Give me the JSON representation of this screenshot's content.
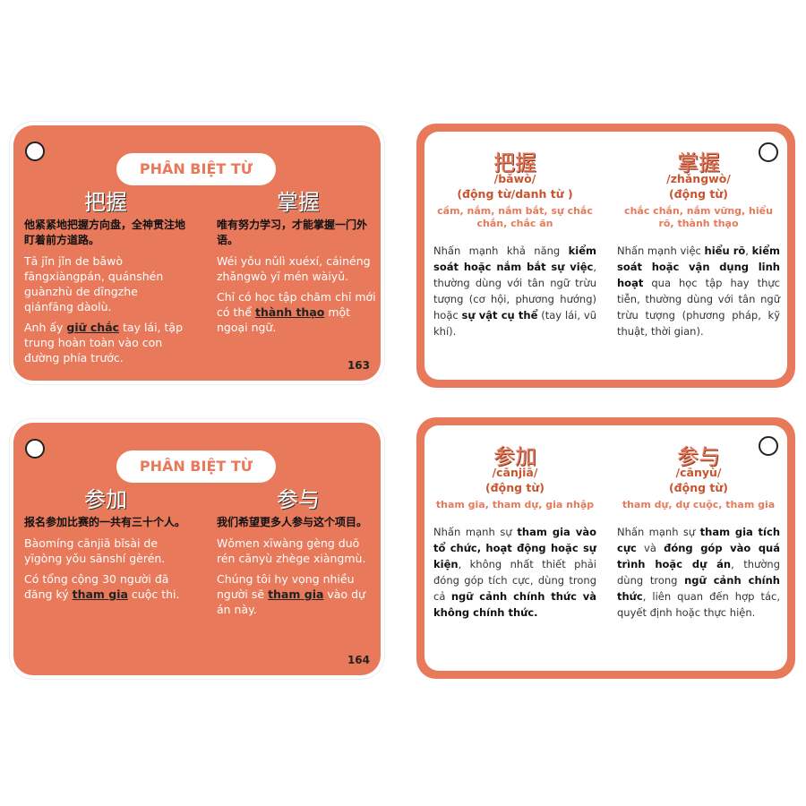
{
  "cards": [
    {
      "front": {
        "badge": "PHÂN BIỆT TỪ",
        "number": "163",
        "words": [
          {
            "hanzi": "把握",
            "example_cn": "他紧紧地把握方向盘，全神贯注地盯着前方道路。",
            "pinyin": "Tā jǐn jǐn de bǎwò fāngxiàngpán, quánshén guànzhù de dīngzhe qiánfāng dàolù.",
            "vi": [
              "Anh ấy ",
              {
                "text": "giữ chắc",
                "underline": true
              },
              " tay lái, tập trung hoàn toàn vào con đường phía trước."
            ]
          },
          {
            "hanzi": "掌握",
            "example_cn": "唯有努力学习，才能掌握一门外语。",
            "pinyin": "Wéi yǒu nǔlì xuéxí, cáinéng zhǎngwò yī mén wàiyǔ.",
            "vi": [
              "Chỉ có học tập chăm chỉ mới có thể ",
              {
                "text": "thành thạo",
                "underline": true
              },
              " một ngoại ngữ."
            ]
          }
        ]
      },
      "back": {
        "words": [
          {
            "hanzi": "把握",
            "pinyin": "/bǎwò/",
            "pos": "(động từ/danh từ )",
            "meaning": "cầm, nắm, nắm bắt, sự chắc chắn, chắc ăn",
            "definition": [
              "Nhấn mạnh khả năng ",
              {
                "text": "kiểm soát hoặc nắm bắt sự việc",
                "bold": true
              },
              ", thường dùng với tân ngữ trừu tượng (cơ hội, phương hướng) hoặc ",
              {
                "text": "sự vật cụ thể",
                "bold": true
              },
              " (tay lái, vũ khí)."
            ]
          },
          {
            "hanzi": "掌握",
            "pinyin": "/zhǎngwò/",
            "pos": "(động từ)",
            "meaning": "chắc chắn, nắm vững, hiểu rõ, thành thạo",
            "definition": [
              "Nhấn mạnh việc ",
              {
                "text": "hiểu rõ",
                "bold": true
              },
              ", ",
              {
                "text": "kiểm soát hoặc vận dụng linh hoạt",
                "bold": true
              },
              " qua học tập hay thực tiễn, thường dùng với tân ngữ trừu tượng (phương pháp, kỹ thuật, thời gian)."
            ]
          }
        ]
      }
    },
    {
      "front": {
        "badge": "PHÂN BIỆT TỪ",
        "number": "164",
        "words": [
          {
            "hanzi": "参加",
            "example_cn": "报名参加比赛的一共有三十个人。",
            "pinyin": "Bàomíng cānjiā bǐsài de yīgòng yǒu sānshí gèrén.",
            "vi": [
              "Có tổng cộng 30 người đã đăng ký ",
              {
                "text": "tham gia",
                "underline": true
              },
              " cuộc thi."
            ]
          },
          {
            "hanzi": "参与",
            "example_cn": "我们希望更多人参与这个项目。",
            "pinyin": "Wǒmen xīwàng gèng duō rén cānyù zhège xiàngmù.",
            "vi": [
              "Chúng tôi hy vọng nhiều người sẽ ",
              {
                "text": "tham gia",
                "underline": true
              },
              " vào dự án này."
            ]
          }
        ]
      },
      "back": {
        "words": [
          {
            "hanzi": "参加",
            "pinyin": "/cānjiā/",
            "pos": "(động từ)",
            "meaning": "tham gia, tham dự, gia nhập",
            "definition": [
              "Nhấn mạnh sự ",
              {
                "text": "tham gia vào tổ chức, hoạt động hoặc sự kiện",
                "bold": true
              },
              ", không nhất thiết phải đóng góp tích cực, dùng trong cả ",
              {
                "text": "ngữ cảnh chính thức và không chính thức.",
                "bold": true
              }
            ]
          },
          {
            "hanzi": "参与",
            "pinyin": "/cānyù/",
            "pos": "(động từ)",
            "meaning": "tham dự, dự cuộc, tham gia",
            "definition": [
              "Nhấn mạnh sự ",
              {
                "text": "tham gia tích cực",
                "bold": true
              },
              " và ",
              {
                "text": "đóng góp vào quá trình hoặc dự án",
                "bold": true
              },
              ", thường dùng trong ",
              {
                "text": "ngữ cảnh chính thức",
                "bold": true
              },
              ", liên quan đến hợp tác, quyết định hoặc thực hiện."
            ]
          }
        ]
      }
    }
  ]
}
